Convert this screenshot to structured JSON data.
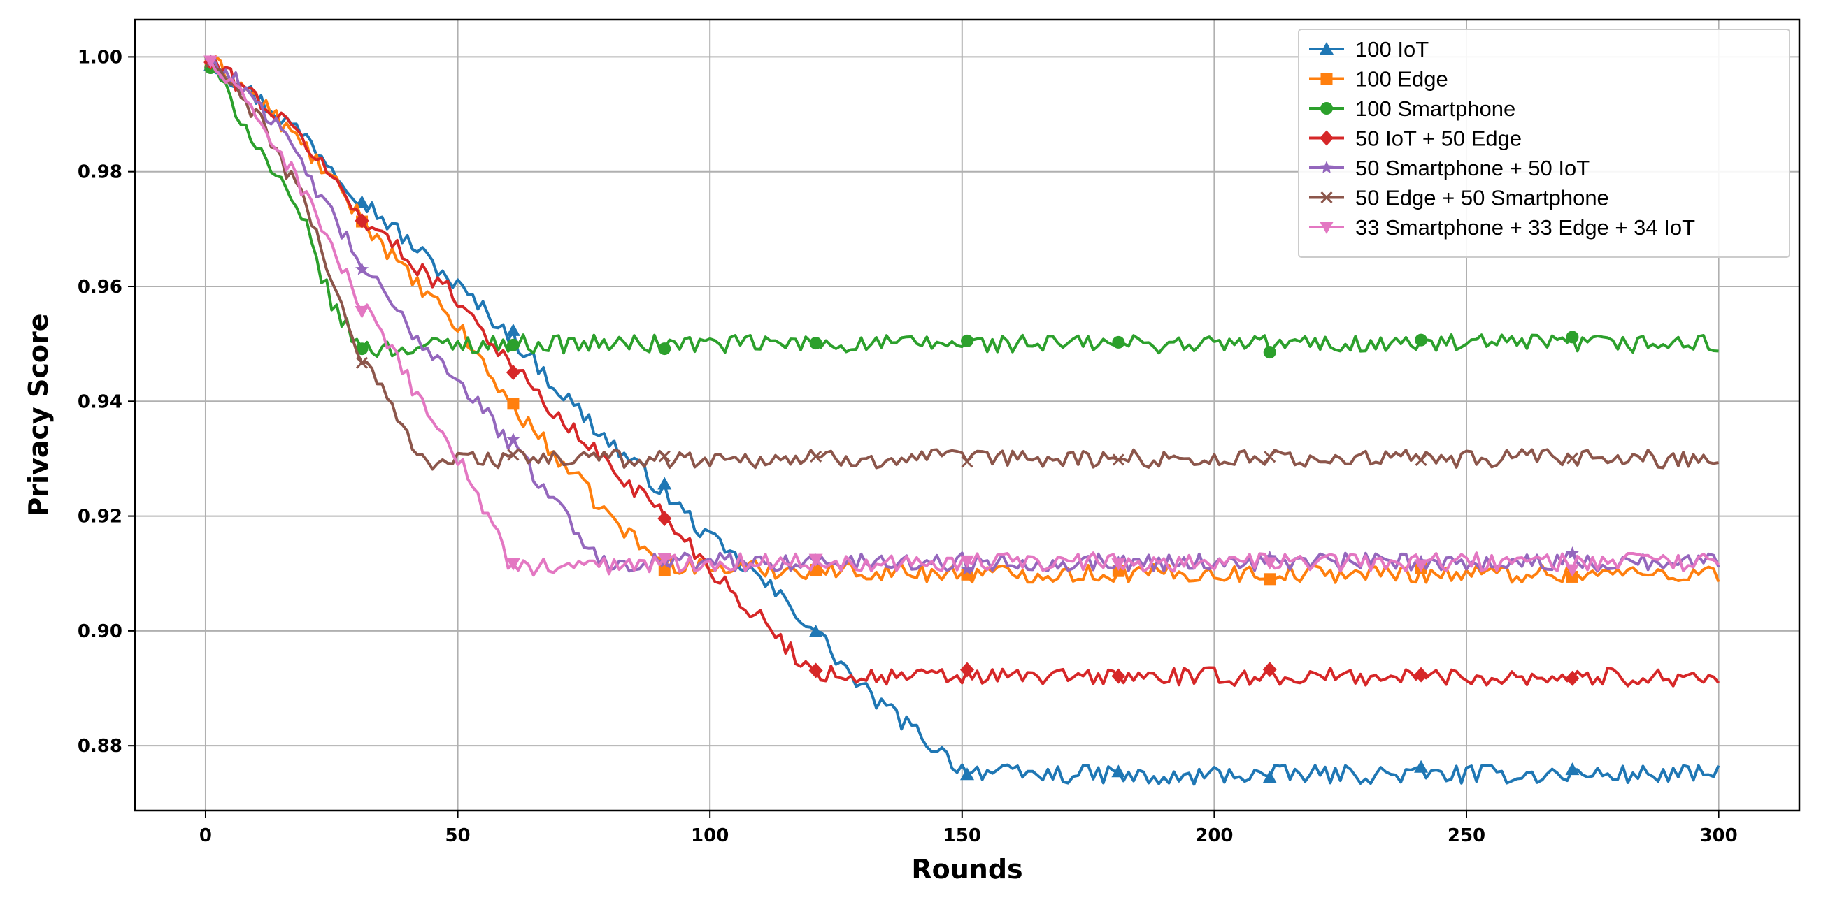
{
  "chart_data": {
    "type": "line",
    "title": "",
    "xlabel": "Rounds",
    "ylabel": "Privacy Score",
    "xlim": [
      -14,
      316
    ],
    "ylim": [
      0.8687,
      1.0065
    ],
    "xticks": [
      0,
      50,
      100,
      150,
      200,
      250,
      300
    ],
    "yticks": [
      0.88,
      0.9,
      0.92,
      0.94,
      0.96,
      0.98,
      1.0
    ],
    "ytick_labels": [
      "0.88",
      "0.90",
      "0.92",
      "0.94",
      "0.96",
      "0.98",
      "1.00"
    ],
    "grid": true,
    "legend_position": "top-right",
    "marker_every": 30,
    "series": [
      {
        "name": "100 IoT",
        "color": "#1f77b4",
        "marker": "triangle-up",
        "points": [
          [
            0,
            1.0
          ],
          [
            10,
            0.993
          ],
          [
            20,
            0.986
          ],
          [
            30,
            0.976
          ],
          [
            40,
            0.968
          ],
          [
            50,
            0.96
          ],
          [
            60,
            0.952
          ],
          [
            70,
            0.942
          ],
          [
            80,
            0.933
          ],
          [
            90,
            0.925
          ],
          [
            100,
            0.916
          ],
          [
            110,
            0.909
          ],
          [
            120,
            0.901
          ],
          [
            130,
            0.89
          ],
          [
            140,
            0.883
          ],
          [
            150,
            0.876
          ],
          [
            160,
            0.875
          ],
          [
            180,
            0.875
          ],
          [
            190,
            0.874
          ],
          [
            200,
            0.875
          ],
          [
            250,
            0.875
          ],
          [
            300,
            0.875
          ]
        ]
      },
      {
        "name": "100 Edge",
        "color": "#ff7f0e",
        "marker": "square",
        "points": [
          [
            0,
            1.0
          ],
          [
            10,
            0.993
          ],
          [
            20,
            0.984
          ],
          [
            30,
            0.973
          ],
          [
            40,
            0.962
          ],
          [
            50,
            0.953
          ],
          [
            60,
            0.94
          ],
          [
            70,
            0.93
          ],
          [
            80,
            0.92
          ],
          [
            90,
            0.912
          ],
          [
            100,
            0.911
          ],
          [
            150,
            0.91
          ],
          [
            200,
            0.91
          ],
          [
            250,
            0.91
          ],
          [
            300,
            0.91
          ]
        ]
      },
      {
        "name": "100 Smartphone",
        "color": "#2ca02c",
        "marker": "circle",
        "points": [
          [
            0,
            1.0
          ],
          [
            10,
            0.985
          ],
          [
            20,
            0.97
          ],
          [
            25,
            0.957
          ],
          [
            30,
            0.95
          ],
          [
            35,
            0.949
          ],
          [
            50,
            0.95
          ],
          [
            100,
            0.95
          ],
          [
            150,
            0.95
          ],
          [
            200,
            0.95
          ],
          [
            250,
            0.95
          ],
          [
            300,
            0.95
          ]
        ]
      },
      {
        "name": "50 IoT + 50 Edge",
        "color": "#d62728",
        "marker": "diamond",
        "points": [
          [
            0,
            1.0
          ],
          [
            10,
            0.993
          ],
          [
            20,
            0.985
          ],
          [
            30,
            0.973
          ],
          [
            40,
            0.965
          ],
          [
            50,
            0.958
          ],
          [
            60,
            0.947
          ],
          [
            70,
            0.937
          ],
          [
            80,
            0.929
          ],
          [
            90,
            0.921
          ],
          [
            100,
            0.911
          ],
          [
            110,
            0.902
          ],
          [
            120,
            0.893
          ],
          [
            130,
            0.892
          ],
          [
            150,
            0.892
          ],
          [
            200,
            0.892
          ],
          [
            250,
            0.892
          ],
          [
            300,
            0.892
          ]
        ]
      },
      {
        "name": "50 Smartphone + 50 IoT",
        "color": "#9467bd",
        "marker": "star",
        "points": [
          [
            0,
            1.0
          ],
          [
            10,
            0.993
          ],
          [
            20,
            0.98
          ],
          [
            30,
            0.965
          ],
          [
            40,
            0.953
          ],
          [
            50,
            0.944
          ],
          [
            60,
            0.933
          ],
          [
            70,
            0.922
          ],
          [
            78,
            0.912
          ],
          [
            85,
            0.912
          ],
          [
            100,
            0.912
          ],
          [
            150,
            0.912
          ],
          [
            200,
            0.912
          ],
          [
            250,
            0.912
          ],
          [
            300,
            0.912
          ]
        ]
      },
      {
        "name": "50 Edge + 50 Smartphone",
        "color": "#8c564b",
        "marker": "x",
        "points": [
          [
            0,
            1.0
          ],
          [
            10,
            0.99
          ],
          [
            20,
            0.974
          ],
          [
            30,
            0.949
          ],
          [
            35,
            0.942
          ],
          [
            40,
            0.934
          ],
          [
            45,
            0.929
          ],
          [
            50,
            0.93
          ],
          [
            100,
            0.93
          ],
          [
            150,
            0.93
          ],
          [
            200,
            0.93
          ],
          [
            250,
            0.93
          ],
          [
            300,
            0.93
          ]
        ]
      },
      {
        "name": "33 Smartphone + 33 Edge + 34 IoT",
        "color": "#e377c2",
        "marker": "triangle-down",
        "points": [
          [
            0,
            1.0
          ],
          [
            10,
            0.99
          ],
          [
            20,
            0.976
          ],
          [
            30,
            0.958
          ],
          [
            40,
            0.944
          ],
          [
            50,
            0.93
          ],
          [
            55,
            0.922
          ],
          [
            60,
            0.912
          ],
          [
            65,
            0.911
          ],
          [
            100,
            0.912
          ],
          [
            150,
            0.912
          ],
          [
            200,
            0.912
          ],
          [
            250,
            0.912
          ],
          [
            300,
            0.912
          ]
        ]
      }
    ]
  }
}
